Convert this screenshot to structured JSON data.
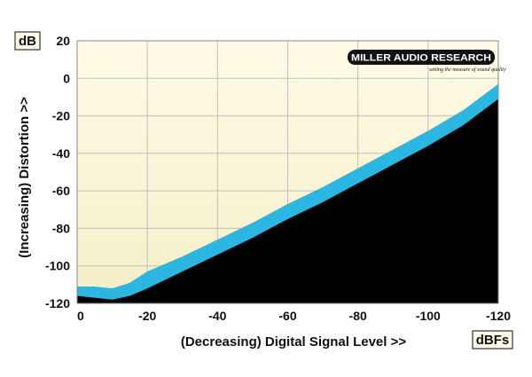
{
  "chart_data": {
    "type": "area",
    "ylabel": "(Increasing) Distortion >>",
    "xlabel": "(Decreasing) Digital Signal Level >>",
    "y_unit": "dB",
    "x_unit": "dBFs",
    "xlim": [
      0,
      -120
    ],
    "ylim": [
      -120,
      20
    ],
    "x_ticks": [
      0,
      -20,
      -40,
      -60,
      -80,
      -100,
      -120
    ],
    "y_ticks": [
      20,
      0,
      -20,
      -40,
      -60,
      -80,
      -100,
      -120
    ],
    "x_tick_labels": [
      "0",
      "-20",
      "-40",
      "-60",
      "-80",
      "-100",
      "-120"
    ],
    "y_tick_labels": [
      "20",
      "0",
      "-20",
      "-40",
      "-60",
      "-80",
      "-100",
      "-120"
    ],
    "grid": true,
    "series": [
      {
        "role": "upper",
        "x": [
          0,
          -5,
          -10,
          -15,
          -20,
          -30,
          -40,
          -50,
          -60,
          -70,
          -80,
          -90,
          -100,
          -110,
          -120
        ],
        "y": [
          -111,
          -111,
          -112,
          -109,
          -103,
          -95,
          -86,
          -77,
          -67,
          -58,
          -48,
          -38,
          -28,
          -17,
          -3
        ]
      },
      {
        "role": "lower",
        "x": [
          0,
          -5,
          -10,
          -15,
          -20,
          -30,
          -40,
          -50,
          -60,
          -70,
          -80,
          -90,
          -100,
          -110,
          -120
        ],
        "y": [
          -116,
          -117,
          -118,
          -116,
          -112,
          -103,
          -94,
          -85,
          -75,
          -66,
          -56,
          -46,
          -36,
          -25,
          -11
        ]
      }
    ],
    "colors": {
      "background_top": "#fffbe6",
      "background_bottom": "#f4efc8",
      "band": "#2bb7e2",
      "floor": "#000000",
      "grid": "#bfbfbf"
    }
  },
  "logo": {
    "name": "MILLER AUDIO RESEARCH",
    "tagline": "setting the measure of sound quality"
  }
}
